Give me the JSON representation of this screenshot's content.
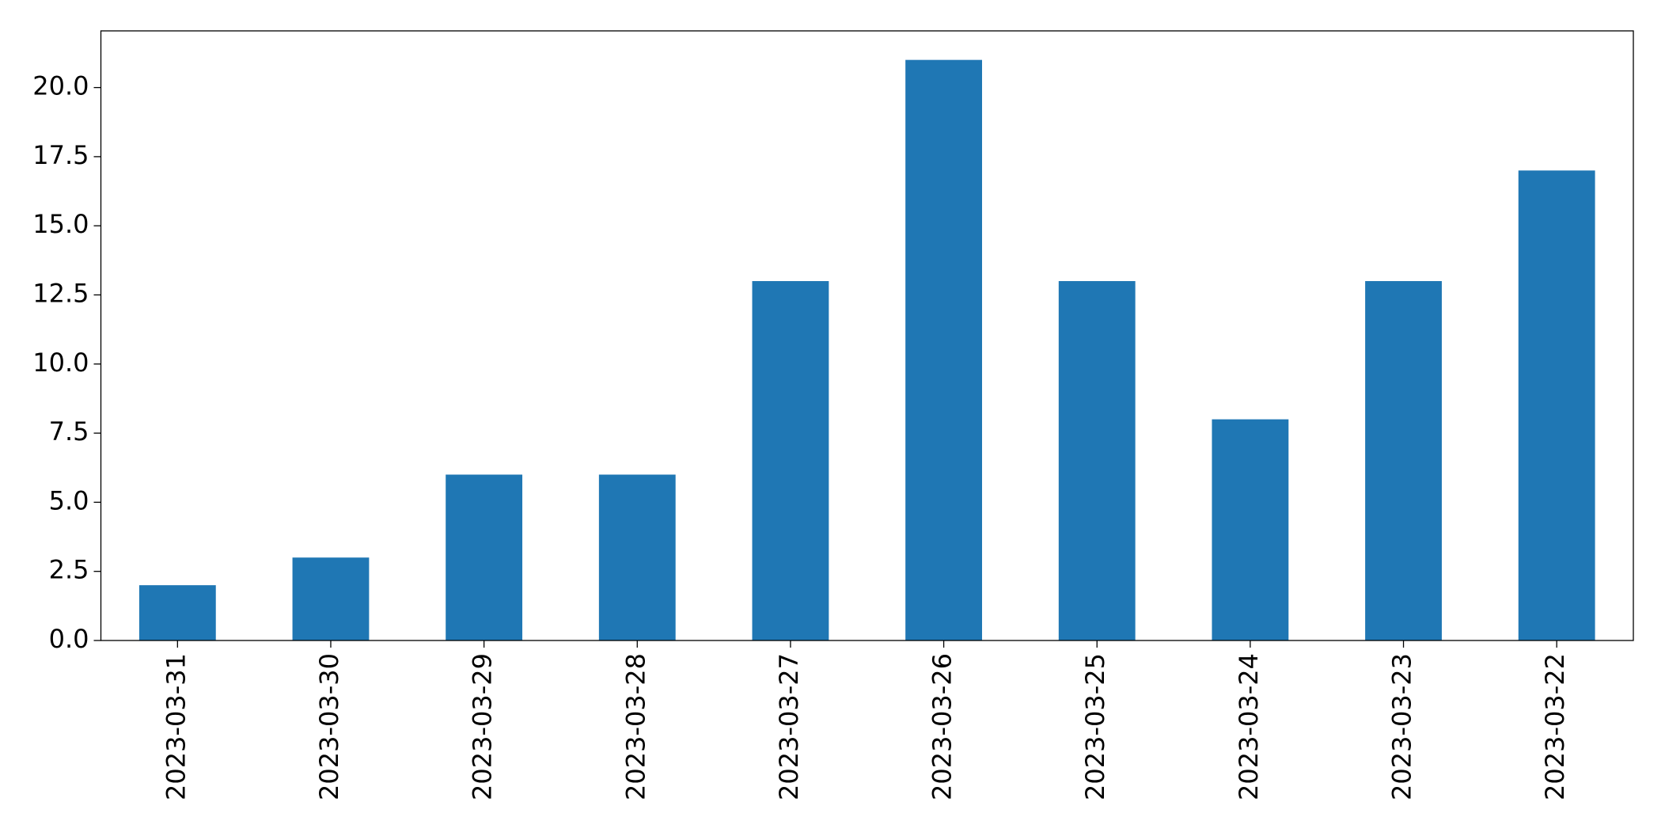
{
  "chart_data": {
    "type": "bar",
    "categories": [
      "2023-03-31",
      "2023-03-30",
      "2023-03-29",
      "2023-03-28",
      "2023-03-27",
      "2023-03-26",
      "2023-03-25",
      "2023-03-24",
      "2023-03-23",
      "2023-03-22"
    ],
    "values": [
      2,
      3,
      6,
      6,
      13,
      21,
      13,
      8,
      13,
      17
    ],
    "color": "#1f77b4",
    "ylim": [
      0,
      22.05
    ],
    "yticks": [
      {
        "value": 0,
        "label": "0.0"
      },
      {
        "value": 2.5,
        "label": "2.5"
      },
      {
        "value": 5,
        "label": "5.0"
      },
      {
        "value": 7.5,
        "label": "7.5"
      },
      {
        "value": 10,
        "label": "10.0"
      },
      {
        "value": 12.5,
        "label": "12.5"
      },
      {
        "value": 15,
        "label": "15.0"
      },
      {
        "value": 17.5,
        "label": "17.5"
      },
      {
        "value": 20,
        "label": "20.0"
      }
    ],
    "grid": false
  }
}
